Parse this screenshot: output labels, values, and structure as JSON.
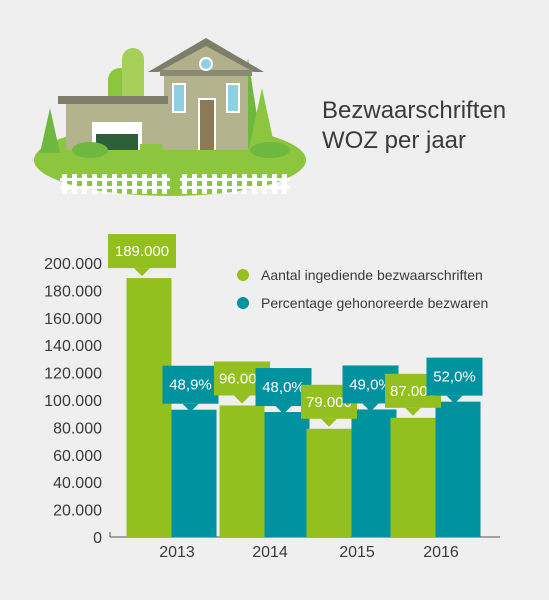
{
  "header": {
    "title_line1": "Bezwaarschriften",
    "title_line2": "WOZ per jaar"
  },
  "colors": {
    "green": "#93c01f",
    "teal": "#00929f",
    "text": "#3a3a3a",
    "background": "#efefef"
  },
  "chart_data": {
    "type": "bar",
    "title": "",
    "xlabel": "",
    "ylabel": "",
    "categories": [
      "2013",
      "2014",
      "2015",
      "2016"
    ],
    "ylim": [
      0,
      200000
    ],
    "yticks": [
      "0",
      "20.000",
      "40.000",
      "60.000",
      "80.000",
      "100.000",
      "120.000",
      "140.000",
      "160.000",
      "180.000",
      "200.000"
    ],
    "legend_position": "top-right",
    "grid": false,
    "series": [
      {
        "name": "Aantal ingediende bezwaarschriften",
        "color": "#93c01f",
        "values": [
          189000,
          96000,
          79000,
          87000
        ],
        "labels": [
          "189.000",
          "96.000",
          "79.000",
          "87.000"
        ]
      },
      {
        "name": "Percentage gehonoreerde bezwaren",
        "color": "#00929f",
        "values": [
          48.9,
          48.0,
          49.0,
          52.0
        ],
        "labels": [
          "48,9%",
          "48,0%",
          "49,0%",
          "52,0%"
        ]
      }
    ]
  }
}
